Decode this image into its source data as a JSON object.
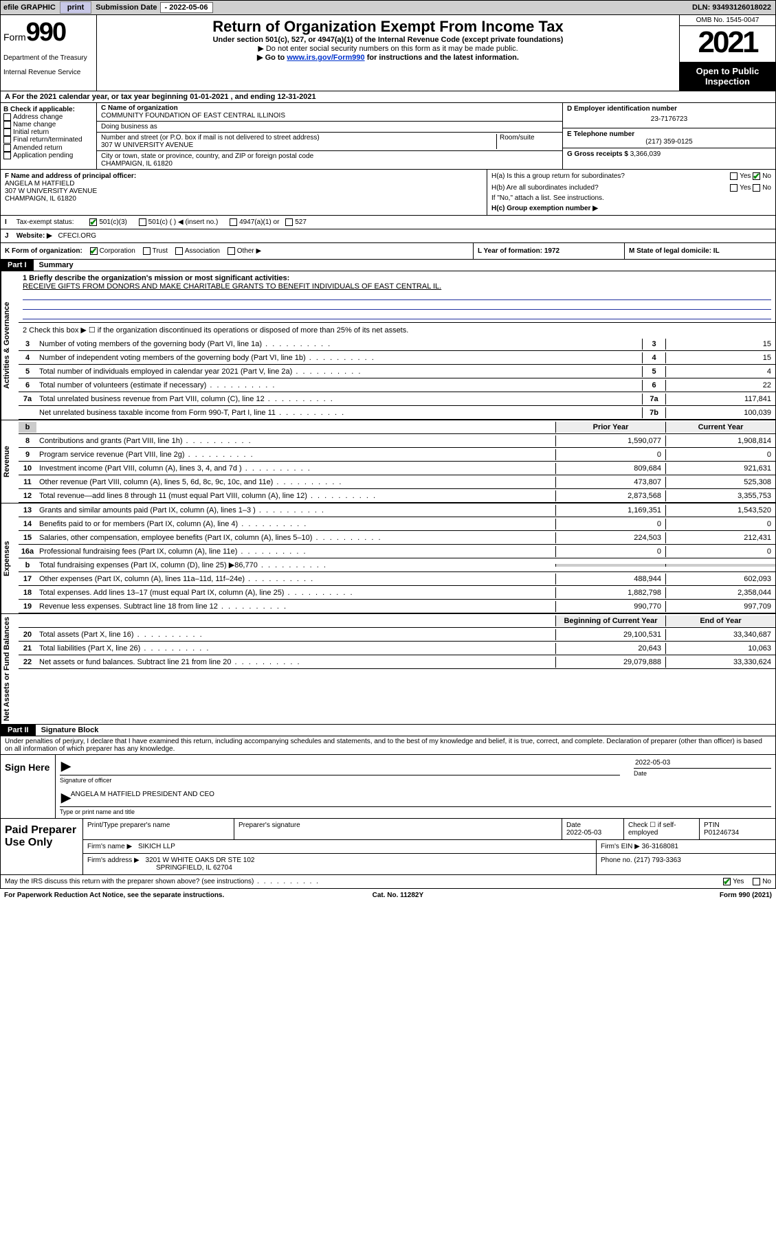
{
  "topbar": {
    "efile_label": "efile GRAPHIC",
    "print_btn": "print",
    "submission_label": "Submission Date",
    "submission_date": "- 2022-05-06",
    "dln_label": "DLN:",
    "dln": "93493126018022"
  },
  "header": {
    "form_word": "Form",
    "form_number": "990",
    "dept": "Department of the Treasury",
    "irs": "Internal Revenue Service",
    "title": "Return of Organization Exempt From Income Tax",
    "sub1": "Under section 501(c), 527, or 4947(a)(1) of the Internal Revenue Code (except private foundations)",
    "sub2": "▶ Do not enter social security numbers on this form as it may be made public.",
    "sub3_pre": "▶ Go to ",
    "sub3_link": "www.irs.gov/Form990",
    "sub3_post": " for instructions and the latest information.",
    "omb": "OMB No. 1545-0047",
    "year": "2021",
    "open1": "Open to Public",
    "open2": "Inspection"
  },
  "line_a": "A For the 2021 calendar year, or tax year beginning 01-01-2021   , and ending 12-31-2021",
  "block_b": {
    "header": "B Check if applicable:",
    "items": [
      "Address change",
      "Name change",
      "Initial return",
      "Final return/terminated",
      "Amended return",
      "Application pending"
    ]
  },
  "block_c": {
    "name_label": "C Name of organization",
    "name": "COMMUNITY FOUNDATION OF EAST CENTRAL ILLINOIS",
    "dba_label": "Doing business as",
    "dba": "",
    "street_label": "Number and street (or P.O. box if mail is not delivered to street address)",
    "street": "307 W UNIVERSITY AVENUE",
    "room_label": "Room/suite",
    "city_label": "City or town, state or province, country, and ZIP or foreign postal code",
    "city": "CHAMPAIGN, IL  61820"
  },
  "block_d": {
    "label": "D Employer identification number",
    "val": "23-7176723"
  },
  "block_e": {
    "label": "E Telephone number",
    "val": "(217) 359-0125"
  },
  "block_g": {
    "label": "G Gross receipts $",
    "val": "3,366,039"
  },
  "block_f": {
    "label": "F  Name and address of principal officer:",
    "name": "ANGELA M HATFIELD",
    "street": "307 W UNIVERSITY AVENUE",
    "city": "CHAMPAIGN, IL  61820"
  },
  "block_h": {
    "ha": "H(a)  Is this a group return for subordinates?",
    "hb": "H(b)  Are all subordinates included?",
    "hb_note": "If \"No,\" attach a list. See instructions.",
    "hc": "H(c)  Group exemption number ▶",
    "yes": "Yes",
    "no": "No"
  },
  "row_i": {
    "lbl": "I",
    "txt": "Tax-exempt status:",
    "opts": [
      "501(c)(3)",
      "501(c) (  ) ◀ (insert no.)",
      "4947(a)(1) or",
      "527"
    ]
  },
  "row_j": {
    "lbl": "J",
    "txt": "Website: ▶",
    "val": "CFECI.ORG"
  },
  "row_k": {
    "k": "K Form of organization:",
    "opts": [
      "Corporation",
      "Trust",
      "Association",
      "Other ▶"
    ],
    "l": "L Year of formation: 1972",
    "m": "M State of legal domicile: IL"
  },
  "part1": {
    "header": "Part I",
    "title": "Summary"
  },
  "mission": {
    "prompt": "1  Briefly describe the organization's mission or most significant activities:",
    "text": "RECEIVE GIFTS FROM DONORS AND MAKE CHARITABLE GRANTS TO BENEFIT INDIVIDUALS OF EAST CENTRAL IL."
  },
  "line2": "2   Check this box ▶ ☐  if the organization discontinued its operations or disposed of more than 25% of its net assets.",
  "vtabs": {
    "gov": "Activities & Governance",
    "rev": "Revenue",
    "exp": "Expenses",
    "net": "Net Assets or Fund Balances"
  },
  "cols": {
    "prior": "Prior Year",
    "current": "Current Year",
    "boy": "Beginning of Current Year",
    "eoy": "End of Year"
  },
  "lines_gov": [
    {
      "n": "3",
      "txt": "Number of voting members of the governing body (Part VI, line 1a)",
      "box": "3",
      "val": "15"
    },
    {
      "n": "4",
      "txt": "Number of independent voting members of the governing body (Part VI, line 1b)",
      "box": "4",
      "val": "15"
    },
    {
      "n": "5",
      "txt": "Total number of individuals employed in calendar year 2021 (Part V, line 2a)",
      "box": "5",
      "val": "4"
    },
    {
      "n": "6",
      "txt": "Total number of volunteers (estimate if necessary)",
      "box": "6",
      "val": "22"
    },
    {
      "n": "7a",
      "txt": "Total unrelated business revenue from Part VIII, column (C), line 12",
      "box": "7a",
      "val": "117,841"
    },
    {
      "n": "",
      "txt": "Net unrelated business taxable income from Form 990-T, Part I, line 11",
      "box": "7b",
      "val": "100,039"
    }
  ],
  "lines_rev": [
    {
      "n": "8",
      "txt": "Contributions and grants (Part VIII, line 1h)",
      "p": "1,590,077",
      "c": "1,908,814"
    },
    {
      "n": "9",
      "txt": "Program service revenue (Part VIII, line 2g)",
      "p": "0",
      "c": "0"
    },
    {
      "n": "10",
      "txt": "Investment income (Part VIII, column (A), lines 3, 4, and 7d )",
      "p": "809,684",
      "c": "921,631"
    },
    {
      "n": "11",
      "txt": "Other revenue (Part VIII, column (A), lines 5, 6d, 8c, 9c, 10c, and 11e)",
      "p": "473,807",
      "c": "525,308"
    },
    {
      "n": "12",
      "txt": "Total revenue—add lines 8 through 11 (must equal Part VIII, column (A), line 12)",
      "p": "2,873,568",
      "c": "3,355,753"
    }
  ],
  "lines_exp": [
    {
      "n": "13",
      "txt": "Grants and similar amounts paid (Part IX, column (A), lines 1–3 )",
      "p": "1,169,351",
      "c": "1,543,520"
    },
    {
      "n": "14",
      "txt": "Benefits paid to or for members (Part IX, column (A), line 4)",
      "p": "0",
      "c": "0"
    },
    {
      "n": "15",
      "txt": "Salaries, other compensation, employee benefits (Part IX, column (A), lines 5–10)",
      "p": "224,503",
      "c": "212,431"
    },
    {
      "n": "16a",
      "txt": "Professional fundraising fees (Part IX, column (A), line 11e)",
      "p": "0",
      "c": "0"
    },
    {
      "n": "b",
      "txt": "Total fundraising expenses (Part IX, column (D), line 25) ▶86,770",
      "p": "",
      "c": "",
      "grey": true
    },
    {
      "n": "17",
      "txt": "Other expenses (Part IX, column (A), lines 11a–11d, 11f–24e)",
      "p": "488,944",
      "c": "602,093"
    },
    {
      "n": "18",
      "txt": "Total expenses. Add lines 13–17 (must equal Part IX, column (A), line 25)",
      "p": "1,882,798",
      "c": "2,358,044"
    },
    {
      "n": "19",
      "txt": "Revenue less expenses. Subtract line 18 from line 12",
      "p": "990,770",
      "c": "997,709"
    }
  ],
  "lines_net": [
    {
      "n": "20",
      "txt": "Total assets (Part X, line 16)",
      "p": "29,100,531",
      "c": "33,340,687"
    },
    {
      "n": "21",
      "txt": "Total liabilities (Part X, line 26)",
      "p": "20,643",
      "c": "10,063"
    },
    {
      "n": "22",
      "txt": "Net assets or fund balances. Subtract line 21 from line 20",
      "p": "29,079,888",
      "c": "33,330,624"
    }
  ],
  "part2": {
    "header": "Part II",
    "title": "Signature Block"
  },
  "penalties": "Under penalties of perjury, I declare that I have examined this return, including accompanying schedules and statements, and to the best of my knowledge and belief, it is true, correct, and complete. Declaration of preparer (other than officer) is based on all information of which preparer has any knowledge.",
  "sign": {
    "side": "Sign Here",
    "sig_officer": "Signature of officer",
    "date_lbl": "Date",
    "date": "2022-05-03",
    "name": "ANGELA M HATFIELD  PRESIDENT AND CEO",
    "name_lbl": "Type or print name and title"
  },
  "prep": {
    "side": "Paid Preparer Use Only",
    "h1": "Print/Type preparer's name",
    "h2": "Preparer's signature",
    "h3": "Date",
    "date": "2022-05-03",
    "h4": "Check ☐ if self-employed",
    "h5": "PTIN",
    "ptin": "P01246734",
    "firm_lbl": "Firm's name    ▶",
    "firm": "SIKICH LLP",
    "ein_lbl": "Firm's EIN ▶",
    "ein": "36-3168081",
    "addr_lbl": "Firm's address ▶",
    "addr1": "3201 W WHITE OAKS DR STE 102",
    "addr2": "SPRINGFIELD, IL  62704",
    "phone_lbl": "Phone no.",
    "phone": "(217) 793-3363"
  },
  "discuss": {
    "txt": "May the IRS discuss this return with the preparer shown above? (see instructions)",
    "yes": "Yes",
    "no": "No"
  },
  "footer": {
    "pra": "For Paperwork Reduction Act Notice, see the separate instructions.",
    "cat": "Cat. No. 11282Y",
    "form": "Form 990 (2021)"
  }
}
